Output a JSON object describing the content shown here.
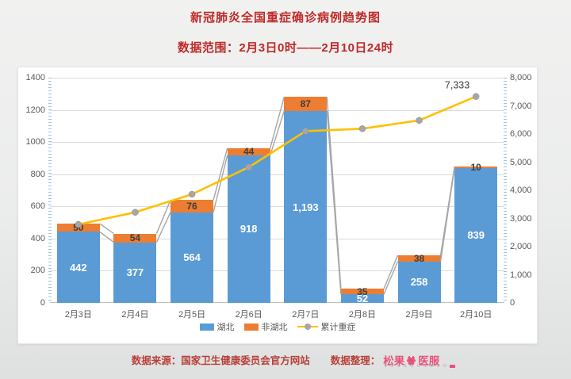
{
  "page": {
    "title": "新冠肺炎全国重症确诊病例趋势图",
    "subtitle": "数据范围：2月3日0时——2月10日24时"
  },
  "chart_data": {
    "type": "bar",
    "subtype": "stacked-column-with-cumulative-line",
    "categories": [
      "2月3日",
      "2月4日",
      "2月5日",
      "2月6日",
      "2月7日",
      "2月8日",
      "2月9日",
      "2月10日"
    ],
    "series": [
      {
        "name": "湖北",
        "chart": "bar",
        "axis": "left",
        "color": "#5b9bd5",
        "values": [
          442,
          377,
          564,
          918,
          1193,
          52,
          258,
          839
        ],
        "labels": [
          "442",
          "377",
          "564",
          "918",
          "1,193",
          "52",
          "258",
          "839"
        ],
        "label_color": "#ffffff"
      },
      {
        "name": "非湖北",
        "chart": "bar",
        "axis": "left",
        "color": "#ed7d31",
        "values": [
          50,
          54,
          76,
          44,
          87,
          35,
          38,
          10
        ],
        "labels": [
          "50",
          "54",
          "76",
          "44",
          "87",
          "35",
          "38",
          "10"
        ],
        "label_color": "#3f3f3f"
      },
      {
        "name": "累计重症",
        "chart": "line",
        "axis": "right",
        "color": "#ffc000",
        "marker_color": "#a6a6a6",
        "values": [
          2788,
          3219,
          3859,
          4821,
          6101,
          6188,
          6484,
          7333
        ],
        "note": "only the last point carries a data label; other values estimated from gridlines",
        "annotation": {
          "index": 7,
          "text": "7,333"
        }
      }
    ],
    "left_axis": {
      "min": 0,
      "max": 1400,
      "step": 200,
      "tick_labels": [
        "0",
        "200",
        "400",
        "600",
        "800",
        "1000",
        "1200",
        "1400"
      ]
    },
    "right_axis": {
      "min": 0,
      "max": 8000,
      "step": 1000,
      "tick_labels": [
        "0",
        "1,000",
        "2,000",
        "3,000",
        "4,000",
        "5,000",
        "6,000",
        "7,000",
        "8,000"
      ]
    },
    "legend": {
      "position": "bottom",
      "items": [
        "湖北",
        "非湖北",
        "累计重症"
      ]
    },
    "grid": "horizontal",
    "series_connector_lines": true,
    "connector_color": "#a6a6a6"
  },
  "footer": {
    "source": "数据来源：国家卫生健康委员会官方网站",
    "compiled_by": "数据整理：",
    "brand_prefix": "松果",
    "brand_suffix": "医服",
    "brand_subtext": "S O N G G U O  M E D"
  }
}
